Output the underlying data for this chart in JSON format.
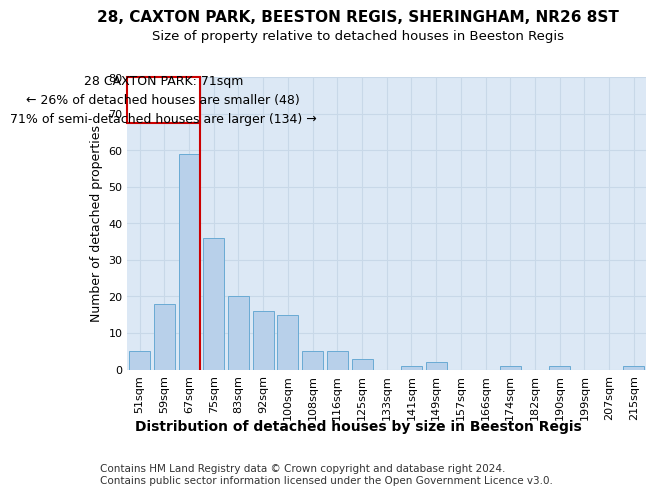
{
  "title1": "28, CAXTON PARK, BEESTON REGIS, SHERINGHAM, NR26 8ST",
  "title2": "Size of property relative to detached houses in Beeston Regis",
  "xlabel": "Distribution of detached houses by size in Beeston Regis",
  "ylabel": "Number of detached properties",
  "categories": [
    "51sqm",
    "59sqm",
    "67sqm",
    "75sqm",
    "83sqm",
    "92sqm",
    "100sqm",
    "108sqm",
    "116sqm",
    "125sqm",
    "133sqm",
    "141sqm",
    "149sqm",
    "157sqm",
    "166sqm",
    "174sqm",
    "182sqm",
    "190sqm",
    "199sqm",
    "207sqm",
    "215sqm"
  ],
  "values": [
    5,
    18,
    59,
    36,
    20,
    16,
    15,
    5,
    5,
    3,
    0,
    1,
    2,
    0,
    0,
    1,
    0,
    1,
    0,
    0,
    1
  ],
  "bar_color": "#b8d0ea",
  "bar_edge_color": "#6aaad4",
  "grid_color": "#c8d8e8",
  "background_color": "#dce8f5",
  "annotation_box_color": "#cc0000",
  "marker_line_color": "#cc0000",
  "marker_index": 2,
  "annotation_title": "28 CAXTON PARK: 71sqm",
  "annotation_line1": "← 26% of detached houses are smaller (48)",
  "annotation_line2": "71% of semi-detached houses are larger (134) →",
  "ylim": [
    0,
    80
  ],
  "yticks": [
    0,
    10,
    20,
    30,
    40,
    50,
    60,
    70,
    80
  ],
  "footnote1": "Contains HM Land Registry data © Crown copyright and database right 2024.",
  "footnote2": "Contains public sector information licensed under the Open Government Licence v3.0.",
  "title1_fontsize": 11,
  "title2_fontsize": 9.5,
  "xlabel_fontsize": 10,
  "ylabel_fontsize": 9,
  "tick_fontsize": 8,
  "annotation_fontsize": 9,
  "footnote_fontsize": 7.5
}
